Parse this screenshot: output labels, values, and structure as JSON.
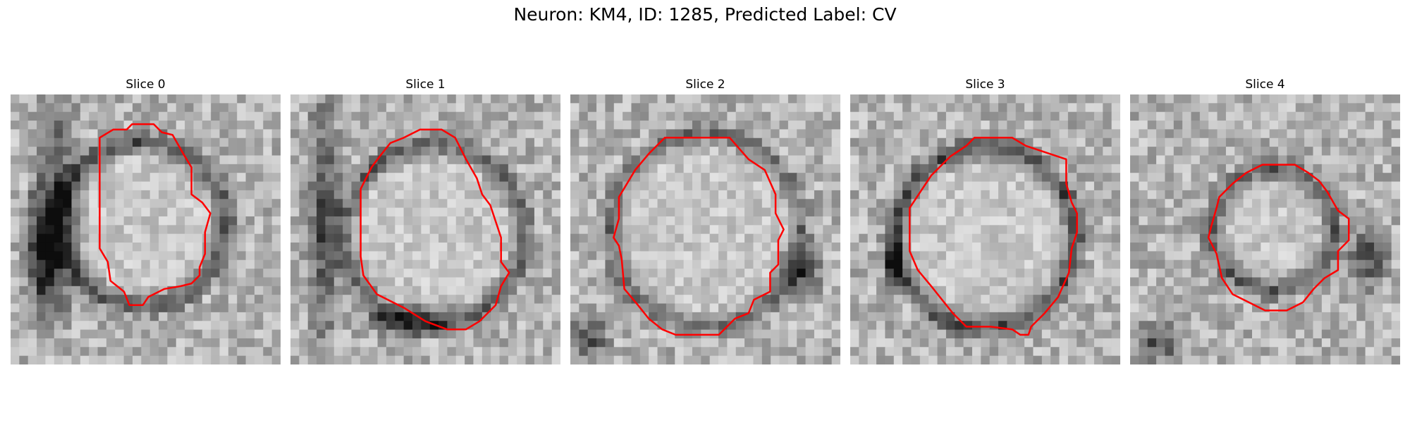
{
  "figure": {
    "title": "Neuron: KM4, ID: 1285, Predicted Label: CV",
    "contour_color": "#ff0000"
  },
  "slices": [
    {
      "title": "Slice 0"
    },
    {
      "title": "Slice 1"
    },
    {
      "title": "Slice 2"
    },
    {
      "title": "Slice 3"
    },
    {
      "title": "Slice 4"
    }
  ]
}
